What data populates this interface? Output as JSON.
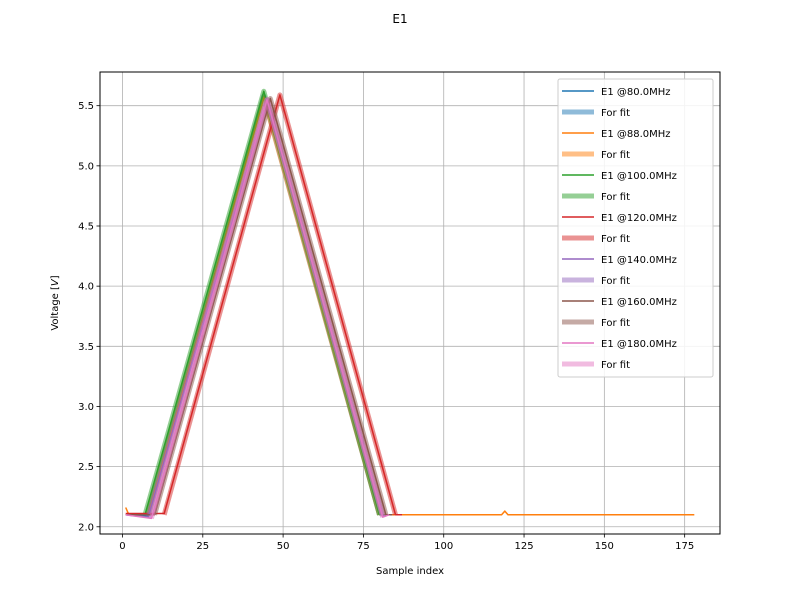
{
  "chart_data": {
    "type": "line",
    "title": "E1",
    "xlabel": "Sample index",
    "ylabel_prefix": "Voltage [",
    "ylabel_unit": "V",
    "ylabel_suffix": "]",
    "xlim": [
      -7,
      186
    ],
    "ylim": [
      1.94,
      5.78
    ],
    "xticks": [
      0,
      25,
      50,
      75,
      100,
      125,
      150,
      175
    ],
    "yticks": [
      2.0,
      2.5,
      3.0,
      3.5,
      4.0,
      4.5,
      5.0,
      5.5
    ],
    "grid": true,
    "legend_position": "top-right",
    "series": [
      {
        "name": "E1 @80.0MHz",
        "color": "#1f77b4",
        "x": [
          1,
          8,
          44,
          80,
          82
        ],
        "y": [
          2.1,
          2.09,
          5.58,
          2.1,
          2.1
        ]
      },
      {
        "name": "For fit",
        "color": "#1f77b4",
        "fit": true,
        "x": [
          8,
          44,
          80
        ],
        "y": [
          2.09,
          5.58,
          2.1
        ]
      },
      {
        "name": "E1 @88.0MHz",
        "color": "#ff7f0e",
        "x": [
          1,
          2,
          8,
          44,
          80,
          82,
          90,
          100,
          110,
          117,
          118,
          119,
          120,
          130,
          140,
          150,
          160,
          170,
          178
        ],
        "y": [
          2.16,
          2.1,
          2.1,
          5.57,
          2.1,
          2.1,
          2.1,
          2.1,
          2.1,
          2.1,
          2.1,
          2.13,
          2.1,
          2.1,
          2.1,
          2.1,
          2.1,
          2.1,
          2.1
        ]
      },
      {
        "name": "For fit",
        "color": "#ff7f0e",
        "fit": true,
        "x": [
          8,
          44,
          80
        ],
        "y": [
          2.1,
          5.57,
          2.1
        ]
      },
      {
        "name": "E1 @100.0MHz",
        "color": "#2ca02c",
        "x": [
          1,
          7,
          44,
          80,
          82
        ],
        "y": [
          2.1,
          2.1,
          5.62,
          2.1,
          2.1
        ]
      },
      {
        "name": "For fit",
        "color": "#2ca02c",
        "fit": true,
        "x": [
          7,
          44,
          80
        ],
        "y": [
          2.1,
          5.62,
          2.1
        ]
      },
      {
        "name": "E1 @120.0MHz",
        "color": "#d62728",
        "x": [
          1,
          13,
          49,
          85,
          87
        ],
        "y": [
          2.11,
          2.11,
          5.59,
          2.1,
          2.1
        ]
      },
      {
        "name": "For fit",
        "color": "#d62728",
        "fit": true,
        "x": [
          13,
          49,
          85
        ],
        "y": [
          2.1,
          5.59,
          2.1
        ]
      },
      {
        "name": "E1 @140.0MHz",
        "color": "#9467bd",
        "x": [
          1,
          8,
          45,
          81,
          83
        ],
        "y": [
          2.1,
          2.08,
          5.55,
          2.09,
          2.1
        ]
      },
      {
        "name": "For fit",
        "color": "#9467bd",
        "fit": true,
        "x": [
          8,
          45,
          81
        ],
        "y": [
          2.08,
          5.55,
          2.09
        ]
      },
      {
        "name": "E1 @160.0MHz",
        "color": "#8c564b",
        "x": [
          1,
          10,
          46,
          82,
          84
        ],
        "y": [
          2.1,
          2.1,
          5.56,
          2.1,
          2.1
        ]
      },
      {
        "name": "For fit",
        "color": "#8c564b",
        "fit": true,
        "x": [
          10,
          46,
          82
        ],
        "y": [
          2.1,
          5.56,
          2.1
        ]
      },
      {
        "name": "E1 @180.0MHz",
        "color": "#e377c2",
        "x": [
          1,
          9,
          45,
          81,
          83
        ],
        "y": [
          2.1,
          2.07,
          5.55,
          2.08,
          2.1
        ]
      },
      {
        "name": "For fit",
        "color": "#e377c2",
        "fit": true,
        "x": [
          9,
          45,
          81
        ],
        "y": [
          2.07,
          5.55,
          2.08
        ]
      }
    ]
  }
}
